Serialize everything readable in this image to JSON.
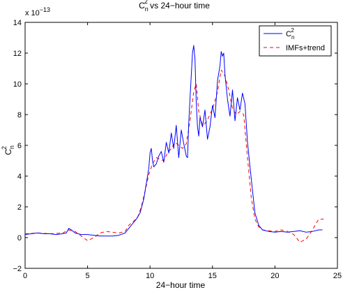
{
  "chart_data": {
    "type": "line",
    "title": "C_n^2 vs 24−hour time",
    "title_main": "C",
    "title_sub": "n",
    "title_sup": "2",
    "title_rest": " vs 24−hour time",
    "xlabel": "24−hour time",
    "ylabel_main": "C",
    "ylabel_sub": "n",
    "ylabel_sup": "2",
    "y_multiplier_label": "x 10",
    "y_multiplier_exp": "−13",
    "xlim": [
      0,
      25
    ],
    "ylim": [
      -2,
      14
    ],
    "xticks": [
      "0",
      "5",
      "10",
      "15",
      "20",
      "25"
    ],
    "yticks": [
      "−2",
      "0",
      "2",
      "4",
      "6",
      "8",
      "10",
      "12",
      "14"
    ],
    "grid": false,
    "legend_position": "top-right",
    "series": [
      {
        "name": "C_n^2",
        "legend_main": "C",
        "legend_sub": "n",
        "legend_sup": "2",
        "color": "#0000ff",
        "dash": "solid",
        "x": [
          0.0,
          0.5,
          1.0,
          1.5,
          2.0,
          2.5,
          3.0,
          3.3,
          3.5,
          3.7,
          4.0,
          4.5,
          5.0,
          5.5,
          6.0,
          6.5,
          7.0,
          7.5,
          8.0,
          8.3,
          8.6,
          8.9,
          9.2,
          9.5,
          9.7,
          9.9,
          10.0,
          10.1,
          10.2,
          10.3,
          10.5,
          10.7,
          10.9,
          11.1,
          11.3,
          11.5,
          11.7,
          11.9,
          12.1,
          12.3,
          12.5,
          12.7,
          12.9,
          13.0,
          13.1,
          13.2,
          13.3,
          13.4,
          13.5,
          13.6,
          13.7,
          13.8,
          13.9,
          14.0,
          14.2,
          14.4,
          14.6,
          14.8,
          15.0,
          15.2,
          15.4,
          15.6,
          15.7,
          15.8,
          15.9,
          16.0,
          16.2,
          16.4,
          16.6,
          16.8,
          17.0,
          17.2,
          17.4,
          17.6,
          17.8,
          18.0,
          18.2,
          18.4,
          18.7,
          19.0,
          19.5,
          20.0,
          20.5,
          21.0,
          21.5,
          22.0,
          22.5,
          23.0,
          23.5,
          23.8
        ],
        "y": [
          0.2,
          0.25,
          0.3,
          0.25,
          0.25,
          0.2,
          0.25,
          0.3,
          0.6,
          0.5,
          0.3,
          0.2,
          0.2,
          0.15,
          0.1,
          0.1,
          0.1,
          0.15,
          0.3,
          0.6,
          0.9,
          1.2,
          1.6,
          2.5,
          3.5,
          4.5,
          5.5,
          5.8,
          5.0,
          4.6,
          4.8,
          5.3,
          5.6,
          4.9,
          6.2,
          5.5,
          6.8,
          5.8,
          7.3,
          5.2,
          7.0,
          6.1,
          5.3,
          5.2,
          7.5,
          9.0,
          10.5,
          12.0,
          12.5,
          11.6,
          8.8,
          7.2,
          6.6,
          7.8,
          7.2,
          8.3,
          6.4,
          7.2,
          8.6,
          7.8,
          10.2,
          11.2,
          12.1,
          11.8,
          12.0,
          10.6,
          9.0,
          7.9,
          9.6,
          7.6,
          9.1,
          8.3,
          9.4,
          8.7,
          6.2,
          4.6,
          3.1,
          1.6,
          0.8,
          0.5,
          0.4,
          0.35,
          0.4,
          0.35,
          0.4,
          0.45,
          0.35,
          0.4,
          0.5,
          0.5
        ]
      },
      {
        "name": "IMFs+trend",
        "legend_main": "IMFs+trend",
        "color": "#ff0000",
        "dash": "dashed",
        "x": [
          0.0,
          1.0,
          2.0,
          3.0,
          3.5,
          4.0,
          4.5,
          5.0,
          5.5,
          6.0,
          6.5,
          7.0,
          7.5,
          8.0,
          8.3,
          8.6,
          9.0,
          9.3,
          9.6,
          9.9,
          10.2,
          10.5,
          10.8,
          11.1,
          11.4,
          11.7,
          12.0,
          12.3,
          12.6,
          12.9,
          13.2,
          13.5,
          13.7,
          13.9,
          14.2,
          14.5,
          14.8,
          15.1,
          15.4,
          15.7,
          16.0,
          16.3,
          16.6,
          16.9,
          17.2,
          17.5,
          17.8,
          18.1,
          18.4,
          18.7,
          19.0,
          19.5,
          20.0,
          20.5,
          21.0,
          21.5,
          22.0,
          22.5,
          23.0,
          23.5,
          23.9
        ],
        "y": [
          0.25,
          0.3,
          0.25,
          0.3,
          0.5,
          0.4,
          0.1,
          -0.2,
          0.0,
          0.3,
          0.4,
          0.35,
          0.3,
          0.4,
          0.8,
          1.0,
          1.3,
          2.0,
          3.0,
          4.1,
          4.8,
          5.2,
          5.1,
          5.0,
          5.5,
          5.8,
          6.2,
          6.0,
          5.8,
          6.1,
          7.6,
          9.5,
          10.0,
          8.2,
          7.3,
          7.5,
          8.0,
          8.6,
          9.5,
          10.9,
          10.5,
          9.6,
          8.4,
          8.0,
          8.2,
          8.0,
          5.2,
          2.6,
          1.2,
          0.7,
          0.5,
          0.45,
          0.4,
          0.5,
          0.4,
          0.2,
          -0.3,
          -0.1,
          0.5,
          1.2,
          1.2
        ]
      }
    ]
  }
}
